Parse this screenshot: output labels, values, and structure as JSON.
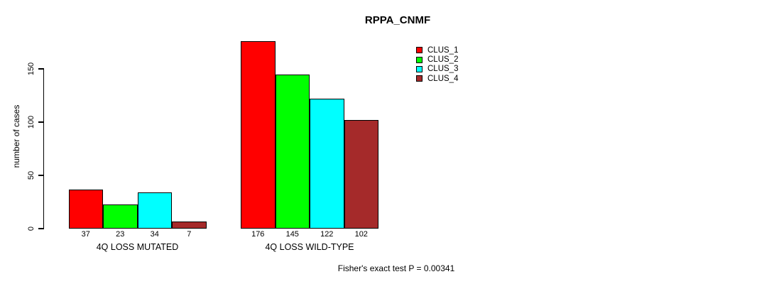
{
  "chart_data": {
    "type": "bar",
    "title": "RPPA_CNMF",
    "ylabel": "number of cases",
    "xlabel": "",
    "categories": [
      "4Q LOSS MUTATED",
      "4Q LOSS WILD-TYPE"
    ],
    "series": [
      {
        "name": "CLUS_1",
        "color": "#FF0000",
        "values": [
          37,
          176
        ]
      },
      {
        "name": "CLUS_2",
        "color": "#00FF00",
        "values": [
          23,
          145
        ]
      },
      {
        "name": "CLUS_3",
        "color": "#00FFFF",
        "values": [
          34,
          122
        ]
      },
      {
        "name": "CLUS_4",
        "color": "#A52A2A",
        "values": [
          7,
          102
        ]
      }
    ],
    "yticks": [
      0,
      50,
      100,
      150
    ],
    "ylim": [
      0,
      183
    ],
    "grid": false,
    "value_labels": true,
    "legend_position": "top-right",
    "annotation": "Fisher's exact test P = 0.00341"
  }
}
